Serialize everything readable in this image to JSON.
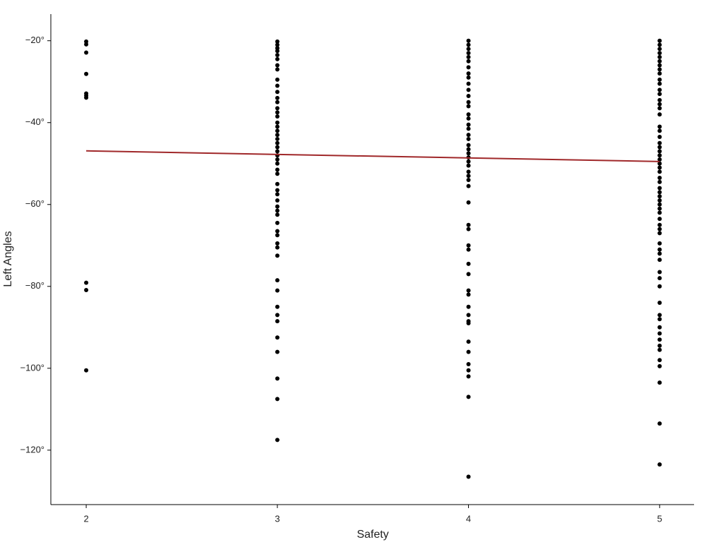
{
  "chart_data": {
    "type": "scatter",
    "x_label": "Safety",
    "y_label": "Left Angles",
    "xlim": [
      1.815,
      5.18
    ],
    "ylim": [
      -133.3,
      -13.5
    ],
    "xticks": [
      2,
      3,
      4,
      5
    ],
    "yticks": [
      {
        "value": -20,
        "label": "−20°"
      },
      {
        "value": -40,
        "label": "−40°"
      },
      {
        "value": -60,
        "label": "−60°"
      },
      {
        "value": -80,
        "label": "−80°"
      },
      {
        "value": -100,
        "label": "−100°"
      },
      {
        "value": -120,
        "label": "−120°"
      }
    ],
    "grid": false,
    "series": [
      {
        "type": "scatter",
        "color": "#000000",
        "x": [
          2,
          2,
          2,
          2,
          2,
          2,
          2,
          2,
          2,
          2
        ],
        "values": [
          -20.2,
          -20.9,
          -22.9,
          -28.1,
          -32.9,
          -33.4,
          -33.9,
          -79.1,
          -80.9,
          -100.5
        ]
      },
      {
        "type": "scatter",
        "color": "#000000",
        "x": [
          3,
          3,
          3,
          3,
          3,
          3,
          3,
          3,
          3,
          3,
          3,
          3,
          3,
          3,
          3,
          3,
          3,
          3,
          3,
          3,
          3,
          3,
          3,
          3,
          3,
          3,
          3,
          3,
          3,
          3,
          3,
          3,
          3,
          3,
          3,
          3,
          3,
          3,
          3,
          3,
          3,
          3,
          3,
          3,
          3,
          3,
          3,
          3,
          3,
          3,
          3,
          3
        ],
        "values": [
          -20.2,
          -21,
          -21.8,
          -22.5,
          -23.5,
          -24.5,
          -26,
          -27,
          -29.5,
          -31,
          -32.5,
          -34,
          -35,
          -36.5,
          -37.5,
          -38.5,
          -40,
          -41,
          -42,
          -43,
          -44,
          -45,
          -46,
          -47,
          -48,
          -49,
          -50,
          -51.5,
          -52.5,
          -55,
          -56.5,
          -57.5,
          -59,
          -60.5,
          -61.5,
          -62.5,
          -64.5,
          -66.5,
          -67.5,
          -69.5,
          -70.5,
          -72.5,
          -78.5,
          -81,
          -85,
          -87,
          -88.5,
          -92.5,
          -96,
          -102.5,
          -107.5,
          -117.5
        ]
      },
      {
        "type": "scatter",
        "color": "#000000",
        "x": [
          4,
          4,
          4,
          4,
          4,
          4,
          4,
          4,
          4,
          4,
          4,
          4,
          4,
          4,
          4,
          4,
          4,
          4,
          4,
          4,
          4,
          4,
          4,
          4,
          4,
          4,
          4,
          4,
          4,
          4,
          4,
          4,
          4,
          4,
          4,
          4,
          4,
          4,
          4,
          4,
          4,
          4,
          4,
          4,
          4,
          4,
          4,
          4,
          4,
          4
        ],
        "values": [
          -20,
          -21,
          -22,
          -23,
          -24,
          -25,
          -26.5,
          -28,
          -29,
          -30.5,
          -32,
          -33.5,
          -35,
          -36,
          -38,
          -39,
          -40.5,
          -41.5,
          -43,
          -44,
          -45.5,
          -46.5,
          -47.5,
          -48.5,
          -49.5,
          -50.5,
          -52,
          -53,
          -54,
          -55.5,
          -59.5,
          -65,
          -66,
          -70,
          -71,
          -74.5,
          -77,
          -81,
          -82,
          -85,
          -87,
          -88.5,
          -89,
          -93.5,
          -96,
          -99,
          -100.5,
          -102,
          -107,
          -126.5
        ]
      },
      {
        "type": "scatter",
        "color": "#000000",
        "x": [
          5,
          5,
          5,
          5,
          5,
          5,
          5,
          5,
          5,
          5,
          5,
          5,
          5,
          5,
          5,
          5,
          5,
          5,
          5,
          5,
          5,
          5,
          5,
          5,
          5,
          5,
          5,
          5,
          5,
          5,
          5,
          5,
          5,
          5,
          5,
          5,
          5,
          5,
          5,
          5,
          5,
          5,
          5,
          5,
          5,
          5,
          5,
          5,
          5,
          5,
          5,
          5,
          5,
          5,
          5,
          5,
          5,
          5,
          5,
          5,
          5
        ],
        "values": [
          -20,
          -21,
          -22,
          -23,
          -24,
          -25,
          -26,
          -27,
          -28,
          -29.5,
          -30.5,
          -32,
          -33,
          -34.5,
          -35.5,
          -36.5,
          -38,
          -41,
          -42,
          -43.5,
          -45,
          -46,
          -47,
          -48,
          -49,
          -50,
          -51,
          -52,
          -53.5,
          -54.5,
          -56,
          -57,
          -58,
          -59,
          -60,
          -61,
          -62,
          -63.5,
          -65,
          -66,
          -67,
          -69.5,
          -71,
          -72,
          -73.5,
          -76.5,
          -78,
          -80,
          -84,
          -87,
          -88,
          -90,
          -91.5,
          -93,
          -94.5,
          -95.5,
          -98,
          -99.5,
          -103.5,
          -113.5,
          -123.5
        ]
      },
      {
        "type": "line",
        "color": "#a0282a",
        "x": [
          2,
          5
        ],
        "values": [
          -46.9,
          -49.5
        ]
      }
    ]
  }
}
